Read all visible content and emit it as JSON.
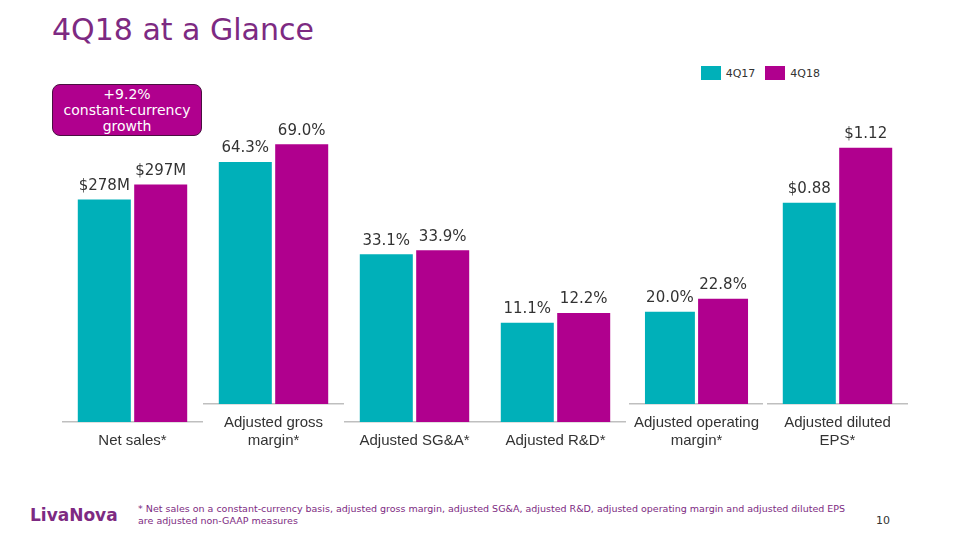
{
  "title": "4Q18 at a Glance",
  "annotation": "+9.2% constant-currency growth",
  "footnote": "* Net sales on a constant-currency basis, adjusted gross margin, adjusted SG&A, adjusted R&D, adjusted operating margin and adjusted diluted EPS are adjusted non-GAAP measures",
  "logo": "LivaNova",
  "page_number": "10",
  "chart_data": [
    {
      "type": "bar",
      "categories": [
        "Net sales*"
      ],
      "series": [
        {
          "name": "4Q17",
          "color": "#00b0b9",
          "values": [
            278
          ],
          "value_labels": [
            "$278M"
          ]
        },
        {
          "name": "4Q18",
          "color": "#b0008e",
          "values": [
            297
          ],
          "value_labels": [
            "$297M"
          ]
        }
      ],
      "ylim": [
        0,
        380
      ],
      "grid": false,
      "data_labels": true,
      "tick_labels": "x"
    },
    {
      "type": "bar",
      "categories": [
        "Adjusted gross margin*"
      ],
      "series": [
        {
          "name": "4Q17",
          "color": "#00b0b9",
          "values": [
            64.3
          ],
          "value_labels": [
            "64.3%"
          ]
        },
        {
          "name": "4Q18",
          "color": "#b0008e",
          "values": [
            69.0
          ],
          "value_labels": [
            "69.0%"
          ]
        }
      ],
      "ylim": [
        0,
        76
      ],
      "grid": false,
      "data_labels": true,
      "tick_labels": "x"
    },
    {
      "type": "bar",
      "categories": [
        "Adjusted SG&A*"
      ],
      "series": [
        {
          "name": "4Q17",
          "color": "#00b0b9",
          "values": [
            33.1
          ],
          "value_labels": [
            "33.1%"
          ]
        },
        {
          "name": "4Q18",
          "color": "#b0008e",
          "values": [
            33.9
          ],
          "value_labels": [
            "33.9%"
          ]
        }
      ],
      "ylim": [
        0,
        60
      ],
      "grid": false,
      "data_labels": true,
      "tick_labels": "x"
    },
    {
      "type": "bar",
      "categories": [
        "Adjusted R&D*"
      ],
      "series": [
        {
          "name": "4Q17",
          "color": "#00b0b9",
          "values": [
            11.1
          ],
          "value_labels": [
            "11.1%"
          ]
        },
        {
          "name": "4Q18",
          "color": "#b0008e",
          "values": [
            12.2
          ],
          "value_labels": [
            "12.2%"
          ]
        }
      ],
      "ylim": [
        0,
        34
      ],
      "grid": false,
      "data_labels": true,
      "tick_labels": "x"
    },
    {
      "type": "bar",
      "categories": [
        "Adjusted operating margin*"
      ],
      "series": [
        {
          "name": "4Q17",
          "color": "#00b0b9",
          "values": [
            20.0
          ],
          "value_labels": [
            "20.0%"
          ]
        },
        {
          "name": "4Q18",
          "color": "#b0008e",
          "values": [
            22.8
          ],
          "value_labels": [
            "22.8%"
          ]
        }
      ],
      "ylim": [
        0,
        62
      ],
      "grid": false,
      "data_labels": true,
      "tick_labels": "x"
    },
    {
      "type": "bar",
      "categories": [
        "Adjusted diluted EPS*"
      ],
      "series": [
        {
          "name": "4Q17",
          "color": "#00b0b9",
          "values": [
            0.88
          ],
          "value_labels": [
            "$0.88"
          ]
        },
        {
          "name": "4Q18",
          "color": "#b0008e",
          "values": [
            1.12
          ],
          "value_labels": [
            "$1.12"
          ]
        }
      ],
      "ylim": [
        0,
        1.25
      ],
      "grid": false,
      "data_labels": true,
      "tick_labels": "x",
      "legend": "top-right"
    }
  ]
}
